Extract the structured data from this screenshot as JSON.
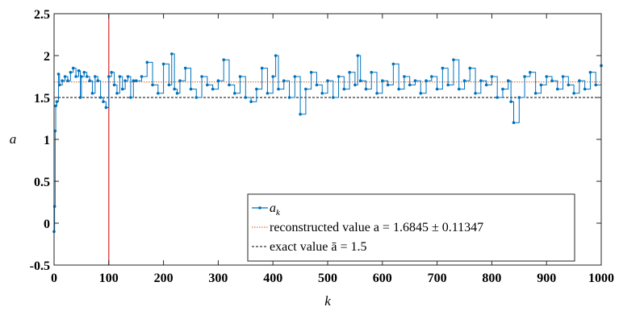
{
  "chart_data": {
    "type": "line",
    "xlabel": "k",
    "ylabel": "a",
    "xlim": [
      0,
      1000
    ],
    "ylim": [
      -0.5,
      2.5
    ],
    "xticks": [
      0,
      100,
      200,
      300,
      400,
      500,
      600,
      700,
      800,
      900,
      1000
    ],
    "yticks": [
      -0.5,
      0,
      0.5,
      1,
      1.5,
      2,
      2.5
    ],
    "xtick_labels": [
      "0",
      "100",
      "200",
      "300",
      "400",
      "500",
      "600",
      "700",
      "800",
      "900",
      "1000"
    ],
    "ytick_labels": [
      "-0.5",
      "0",
      "0.5",
      "1",
      "1.5",
      "2",
      "2.5"
    ],
    "grid": false,
    "legend_position": "bottom-right",
    "vertical_line": {
      "x": 100,
      "color": "#d62728"
    },
    "series": [
      {
        "name": "a_k",
        "legend_main": "a",
        "legend_sub": "k",
        "style": "line-with-markers",
        "color": "#0072bd",
        "x": [
          0,
          1,
          2,
          3,
          5,
          8,
          10,
          15,
          20,
          25,
          30,
          35,
          40,
          45,
          48,
          50,
          55,
          60,
          65,
          70,
          75,
          80,
          85,
          90,
          95,
          100,
          105,
          110,
          115,
          120,
          125,
          130,
          135,
          140,
          145,
          150,
          160,
          170,
          180,
          190,
          200,
          210,
          215,
          220,
          225,
          230,
          240,
          250,
          260,
          270,
          280,
          290,
          300,
          310,
          320,
          330,
          340,
          350,
          360,
          370,
          380,
          390,
          400,
          405,
          410,
          420,
          430,
          440,
          450,
          460,
          470,
          480,
          490,
          500,
          510,
          520,
          530,
          540,
          550,
          555,
          560,
          570,
          580,
          590,
          600,
          610,
          620,
          630,
          640,
          650,
          660,
          670,
          680,
          690,
          700,
          710,
          720,
          730,
          740,
          750,
          760,
          770,
          780,
          790,
          800,
          810,
          820,
          830,
          835,
          840,
          850,
          860,
          870,
          880,
          890,
          900,
          910,
          920,
          930,
          940,
          950,
          960,
          970,
          980,
          990,
          1000
        ],
        "y": [
          -0.1,
          0.2,
          1.1,
          1.4,
          1.45,
          1.78,
          1.65,
          1.7,
          1.75,
          1.7,
          1.8,
          1.85,
          1.75,
          1.82,
          1.5,
          1.75,
          1.8,
          1.75,
          1.7,
          1.55,
          1.75,
          1.7,
          1.5,
          1.45,
          1.38,
          1.75,
          1.8,
          1.65,
          1.55,
          1.75,
          1.6,
          1.7,
          1.75,
          1.5,
          1.7,
          1.7,
          1.75,
          1.92,
          1.65,
          1.55,
          1.9,
          1.65,
          2.02,
          1.6,
          1.55,
          1.7,
          1.85,
          1.6,
          1.5,
          1.75,
          1.65,
          1.6,
          1.7,
          1.95,
          1.65,
          1.55,
          1.75,
          1.5,
          1.45,
          1.6,
          1.85,
          1.55,
          1.75,
          2.0,
          1.6,
          1.7,
          1.5,
          1.75,
          1.3,
          1.6,
          1.8,
          1.65,
          1.55,
          1.7,
          1.5,
          1.75,
          1.6,
          1.8,
          1.65,
          2.0,
          1.7,
          1.6,
          1.8,
          1.55,
          1.7,
          1.65,
          1.9,
          1.6,
          1.75,
          1.65,
          1.7,
          1.55,
          1.7,
          1.75,
          1.6,
          1.85,
          1.65,
          1.95,
          1.6,
          1.7,
          1.85,
          1.55,
          1.7,
          1.65,
          1.75,
          1.5,
          1.6,
          1.7,
          1.45,
          1.2,
          1.5,
          1.75,
          1.8,
          1.55,
          1.65,
          1.75,
          1.7,
          1.6,
          1.75,
          1.65,
          1.55,
          1.7,
          1.6,
          1.8,
          1.65,
          1.88
        ]
      },
      {
        "name": "reconstructed value",
        "style": "dotted",
        "color": "#d95319",
        "value": 1.6845,
        "legend_label": "reconstructed value a = 1.6845 ± 0.11347"
      },
      {
        "name": "exact value",
        "style": "dashed",
        "color": "#000000",
        "value": 1.5,
        "legend_label": "exact value ā = 1.5"
      }
    ]
  }
}
